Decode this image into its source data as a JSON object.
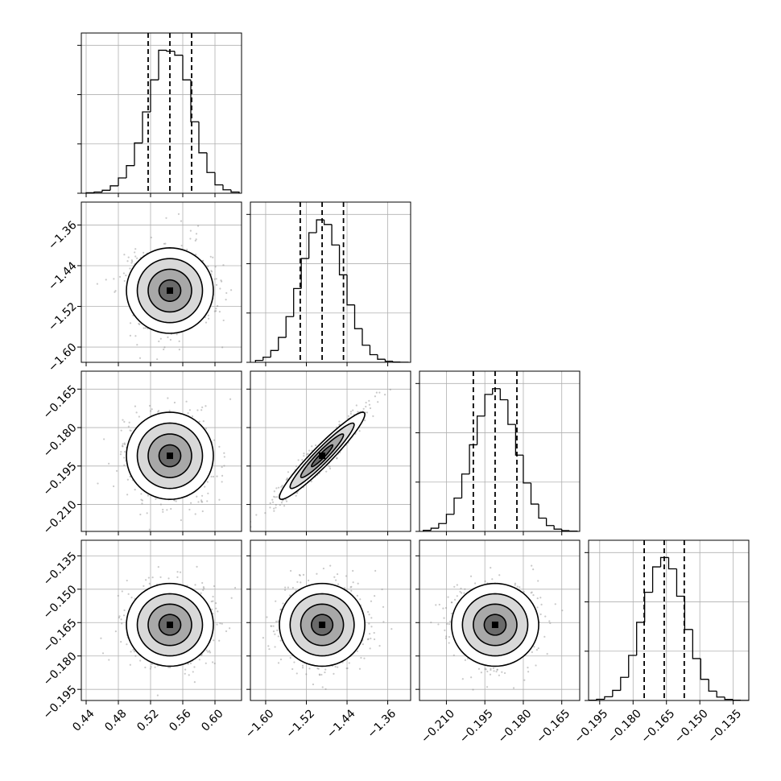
{
  "chart_data": {
    "type": "corner",
    "levels": [
      0.5,
      1,
      1.5,
      2
    ],
    "count_lim": [
      0,
      3250
    ],
    "count_ticks": [
      0,
      1000,
      2000,
      3000
    ],
    "grid": true,
    "color": "#000000",
    "parameters": [
      {
        "range": [
          0.434,
          0.633
        ],
        "ticks": [
          0.44,
          0.48,
          0.52,
          0.56,
          {
            "value": 0.6,
            "label": "0.60"
          }
        ],
        "mean": 0.544,
        "sigma": 0.027,
        "quantiles": [
          0.517,
          0.544,
          0.571
        ],
        "bins": [
          0.44,
          0.45,
          0.46,
          0.47,
          0.48,
          0.49,
          0.5,
          0.51,
          0.52,
          0.53,
          0.54,
          0.55,
          0.56,
          0.57,
          0.58,
          0.59,
          0.6,
          0.61,
          0.62,
          0.63
        ],
        "counts": [
          10,
          25,
          60,
          150,
          310,
          560,
          1020,
          1650,
          2300,
          2900,
          2880,
          2800,
          2300,
          1450,
          820,
          420,
          170,
          70,
          25
        ]
      },
      {
        "range": [
          -1.63,
          -1.315
        ],
        "ticks": [
          {
            "value": -1.6,
            "label": "−1.60"
          },
          {
            "value": -1.52,
            "label": "−1.52"
          },
          {
            "value": -1.44,
            "label": "−1.44"
          },
          {
            "value": -1.36,
            "label": "−1.36"
          }
        ],
        "mean": -1.489,
        "sigma": 0.042,
        "quantiles": [
          -1.532,
          -1.489,
          -1.447
        ],
        "bins": [
          -1.62,
          -1.605,
          -1.59,
          -1.575,
          -1.56,
          -1.545,
          -1.53,
          -1.515,
          -1.5,
          -1.485,
          -1.47,
          -1.455,
          -1.44,
          -1.425,
          -1.41,
          -1.395,
          -1.38,
          -1.365,
          -1.35,
          -1.335,
          -1.32
        ],
        "counts": [
          39,
          104,
          240,
          505,
          927,
          1497,
          2106,
          2630,
          2890,
          2796,
          2380,
          1775,
          1165,
          683,
          347,
          155,
          62,
          22,
          6,
          2
        ]
      },
      {
        "range": [
          -0.2205,
          -0.158
        ],
        "ticks": [
          {
            "value": -0.21,
            "label": "−0.210"
          },
          {
            "value": -0.195,
            "label": "−0.195"
          },
          {
            "value": -0.18,
            "label": "−0.180"
          },
          {
            "value": -0.165,
            "label": "−0.165"
          }
        ],
        "mean": -0.191,
        "sigma": 0.0085,
        "quantiles": [
          -0.1995,
          -0.191,
          -0.1825
        ],
        "bins": [
          -0.219,
          -0.216,
          -0.213,
          -0.21,
          -0.207,
          -0.204,
          -0.201,
          -0.198,
          -0.195,
          -0.192,
          -0.189,
          -0.186,
          -0.183,
          -0.18,
          -0.177,
          -0.174,
          -0.171,
          -0.168,
          -0.165,
          -0.162,
          -0.159
        ],
        "counts": [
          22,
          64,
          159,
          347,
          676,
          1164,
          1757,
          2340,
          2778,
          2895,
          2670,
          2170,
          1547,
          982,
          554,
          270,
          118,
          46,
          15,
          5
        ]
      },
      {
        "range": [
          -0.2,
          -0.128
        ],
        "ticks": [
          {
            "value": -0.195,
            "label": "−0.195"
          },
          {
            "value": -0.18,
            "label": "−0.180"
          },
          {
            "value": -0.165,
            "label": "−0.165"
          },
          {
            "value": -0.15,
            "label": "−0.150"
          },
          {
            "value": -0.135,
            "label": "−0.135"
          }
        ],
        "mean": -0.166,
        "sigma": 0.0093,
        "quantiles": [
          -0.175,
          -0.166,
          -0.157
        ],
        "bins": [
          -0.2,
          -0.1964,
          -0.1928,
          -0.1892,
          -0.1856,
          -0.182,
          -0.1784,
          -0.1748,
          -0.1712,
          -0.1676,
          -0.164,
          -0.1604,
          -0.1568,
          -0.1532,
          -0.1496,
          -0.146,
          -0.1424,
          -0.1388,
          -0.1352,
          -0.1316,
          -0.128
        ],
        "counts": [
          6,
          25,
          75,
          205,
          470,
          915,
          1585,
          2195,
          2710,
          2900,
          2670,
          2115,
          1440,
          850,
          430,
          190,
          70,
          22,
          6,
          2
        ]
      }
    ],
    "pairs": [
      [
        {
          "rho": 0
        }
      ],
      [
        {
          "rho": 0
        },
        {
          "rho": 0.95
        }
      ],
      [
        {
          "rho": 0
        },
        {
          "rho": 0
        },
        {
          "rho": 0
        }
      ]
    ]
  }
}
